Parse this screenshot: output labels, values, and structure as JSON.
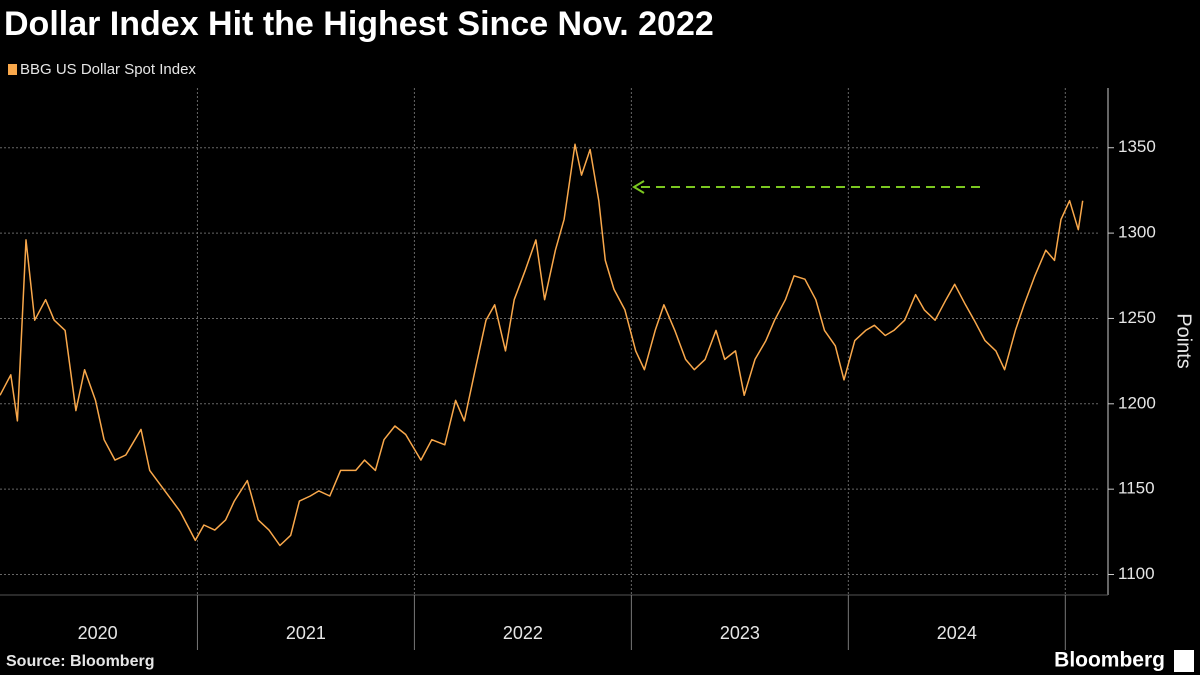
{
  "chart_data": {
    "type": "line",
    "title": "Dollar Index Hit the Highest Since Nov. 2022",
    "ylabel": "Points",
    "source": "Source: Bloomberg",
    "brand": "Bloomberg",
    "xlim": [
      2020.09,
      2025.1
    ],
    "xticks": [
      {
        "value": 2020.54,
        "label": "2020"
      },
      {
        "value": 2021.5,
        "label": "2021"
      },
      {
        "value": 2022.5,
        "label": "2022"
      },
      {
        "value": 2023.5,
        "label": "2023"
      },
      {
        "value": 2024.5,
        "label": "2024"
      }
    ],
    "xgrid": [
      2021,
      2022,
      2023,
      2024,
      2025
    ],
    "ylim": [
      1088,
      1385
    ],
    "yticks": [
      1100,
      1150,
      1200,
      1250,
      1300,
      1350
    ],
    "grid": true,
    "series": [
      {
        "name": "BBG US Dollar Spot Index",
        "color": "#f9a84b",
        "x": [
          2020.09,
          2020.14,
          2020.17,
          2020.21,
          2020.25,
          2020.3,
          2020.34,
          2020.39,
          2020.44,
          2020.48,
          2020.53,
          2020.57,
          2020.62,
          2020.67,
          2020.74,
          2020.78,
          2020.85,
          2020.92,
          2020.99,
          2021.03,
          2021.08,
          2021.13,
          2021.17,
          2021.23,
          2021.28,
          2021.33,
          2021.38,
          2021.43,
          2021.47,
          2021.52,
          2021.56,
          2021.61,
          2021.66,
          2021.73,
          2021.77,
          2021.82,
          2021.86,
          2021.91,
          2021.96,
          2022.03,
          2022.08,
          2022.14,
          2022.19,
          2022.23,
          2022.28,
          2022.33,
          2022.37,
          2022.42,
          2022.46,
          2022.51,
          2022.56,
          2022.6,
          2022.65,
          2022.69,
          2022.74,
          2022.77,
          2022.81,
          2022.85,
          2022.88,
          2022.92,
          2022.97,
          2023.02,
          2023.06,
          2023.11,
          2023.15,
          2023.2,
          2023.25,
          2023.29,
          2023.34,
          2023.39,
          2023.43,
          2023.48,
          2023.52,
          2023.57,
          2023.62,
          2023.66,
          2023.71,
          2023.75,
          2023.8,
          2023.85,
          2023.89,
          2023.94,
          2023.98,
          2024.03,
          2024.08,
          2024.12,
          2024.17,
          2024.21,
          2024.26,
          2024.31,
          2024.35,
          2024.4,
          2024.45,
          2024.49,
          2024.54,
          2024.58,
          2024.63,
          2024.68,
          2024.72,
          2024.77,
          2024.81,
          2024.86,
          2024.91,
          2024.95,
          2024.98,
          2025.02,
          2025.06,
          2025.08
        ],
        "values": [
          1205,
          1217,
          1190,
          1296,
          1249,
          1261,
          1249,
          1243,
          1196,
          1220,
          1202,
          1179,
          1167,
          1170,
          1185,
          1161,
          1149,
          1137,
          1120,
          1129,
          1126,
          1132,
          1143,
          1155,
          1132,
          1126,
          1117,
          1123,
          1143,
          1146,
          1149,
          1146,
          1161,
          1161,
          1167,
          1161,
          1179,
          1187,
          1182,
          1167,
          1179,
          1176,
          1202,
          1190,
          1220,
          1249,
          1258,
          1231,
          1261,
          1278,
          1296,
          1261,
          1290,
          1308,
          1352,
          1334,
          1349,
          1319,
          1284,
          1267,
          1255,
          1231,
          1220,
          1243,
          1258,
          1243,
          1226,
          1220,
          1226,
          1243,
          1226,
          1231,
          1205,
          1226,
          1237,
          1249,
          1261,
          1275,
          1273,
          1261,
          1243,
          1234,
          1214,
          1237,
          1243,
          1246,
          1240,
          1243,
          1249,
          1264,
          1255,
          1249,
          1261,
          1270,
          1258,
          1249,
          1237,
          1231,
          1220,
          1243,
          1258,
          1275,
          1290,
          1284,
          1308,
          1319,
          1302,
          1319
        ]
      }
    ]
  }
}
